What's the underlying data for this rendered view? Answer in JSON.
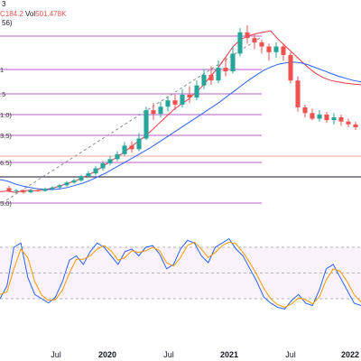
{
  "header": {
    "row1_partial": "3",
    "vol_price": "C184.2",
    "vol_label": "Vol",
    "vol_value": "501.478K",
    "ma_partial": "56)"
  },
  "colors": {
    "up": "#26a69a",
    "down": "#ef5350",
    "fib": "#9c27b0",
    "ma_fast": "#f23645",
    "ma_slow": "#2962ff",
    "stoch_k": "#2962ff",
    "stoch_d": "#ff9800"
  },
  "chart_data": [
    {
      "type": "candlestick",
      "title": "",
      "x_ticks": [
        "Jul",
        "2020",
        "Jul",
        "2021",
        "Jul",
        "2022"
      ],
      "fib_levels": [
        "1",
        ".5",
        "1.0)",
        "3.5)",
        "6.5)",
        "5.0)"
      ],
      "series": [
        {
          "values": [
            95,
            96,
            94,
            96,
            97,
            96,
            98,
            100,
            103,
            107,
            110,
            115,
            120,
            126,
            133,
            140,
            147,
            155,
            163,
            171,
            180,
            190,
            200,
            210,
            218,
            225,
            235,
            245,
            258,
            270,
            285,
            300,
            310,
            315,
            318,
            320,
            322,
            310,
            300,
            290,
            280,
            270,
            262,
            256,
            252,
            250,
            248,
            247,
            246
          ]
        },
        {
          "values": [
            112,
            110,
            106,
            103,
            101,
            99,
            98,
            98,
            99,
            101,
            104,
            107,
            111,
            116,
            121,
            127,
            133,
            139,
            145,
            151,
            157,
            164,
            171,
            178,
            185,
            192,
            199,
            206,
            213,
            220,
            228,
            236,
            244,
            252,
            259,
            266,
            271,
            275,
            277,
            278,
            277,
            274,
            270,
            266,
            262,
            258,
            255,
            252,
            250
          ]
        }
      ],
      "candles": [
        [
          100,
          96,
          103,
          94
        ],
        [
          96,
          97,
          99,
          93
        ],
        [
          97,
          94,
          98,
          92
        ],
        [
          94,
          97,
          99,
          93
        ],
        [
          97,
          96,
          100,
          95
        ],
        [
          96,
          99,
          101,
          95
        ],
        [
          99,
          101,
          103,
          97
        ],
        [
          101,
          104,
          106,
          99
        ],
        [
          104,
          108,
          110,
          102
        ],
        [
          108,
          111,
          113,
          106
        ],
        [
          111,
          117,
          119,
          109
        ],
        [
          117,
          121,
          124,
          115
        ],
        [
          121,
          128,
          131,
          118
        ],
        [
          128,
          135,
          138,
          125
        ],
        [
          135,
          141,
          145,
          132
        ],
        [
          141,
          148,
          152,
          138
        ],
        [
          148,
          160,
          165,
          145
        ],
        [
          160,
          155,
          166,
          150
        ],
        [
          155,
          170,
          178,
          152
        ],
        [
          170,
          210,
          215,
          168
        ],
        [
          210,
          205,
          220,
          196
        ],
        [
          205,
          215,
          222,
          200
        ],
        [
          215,
          224,
          230,
          208
        ],
        [
          224,
          218,
          232,
          210
        ],
        [
          218,
          232,
          240,
          214
        ],
        [
          232,
          228,
          244,
          220
        ],
        [
          228,
          245,
          252,
          224
        ],
        [
          245,
          260,
          268,
          240
        ],
        [
          260,
          252,
          272,
          246
        ],
        [
          252,
          270,
          280,
          248
        ],
        [
          270,
          265,
          285,
          258
        ],
        [
          265,
          290,
          300,
          262
        ],
        [
          290,
          320,
          326,
          286
        ],
        [
          320,
          312,
          330,
          304
        ],
        [
          312,
          306,
          318,
          296
        ],
        [
          306,
          300,
          310,
          290
        ],
        [
          300,
          292,
          304,
          280
        ],
        [
          292,
          300,
          306,
          284
        ],
        [
          300,
          288,
          304,
          280
        ],
        [
          288,
          252,
          292,
          248
        ],
        [
          252,
          214,
          258,
          208
        ],
        [
          214,
          206,
          218,
          200
        ],
        [
          206,
          198,
          212,
          196
        ],
        [
          198,
          204,
          210,
          194
        ],
        [
          204,
          196,
          208,
          192
        ],
        [
          196,
          200,
          206,
          190
        ],
        [
          200,
          194,
          204,
          188
        ],
        [
          194,
          190,
          198,
          186
        ],
        [
          190,
          186,
          194,
          182
        ]
      ],
      "ylim": [
        70,
        330
      ]
    },
    {
      "type": "line",
      "title": "",
      "series": [
        {
          "values": [
            20,
            35,
            80,
            85,
            45,
            25,
            20,
            15,
            22,
            40,
            65,
            70,
            60,
            75,
            85,
            80,
            70,
            60,
            75,
            78,
            70,
            80,
            82,
            72,
            55,
            60,
            78,
            88,
            85,
            70,
            62,
            80,
            85,
            90,
            78,
            70,
            55,
            40,
            22,
            15,
            10,
            8,
            18,
            25,
            15,
            12,
            30,
            55,
            60,
            45,
            30,
            15,
            12
          ]
        },
        {
          "values": [
            25,
            28,
            55,
            78,
            68,
            40,
            24,
            18,
            19,
            30,
            50,
            66,
            66,
            70,
            78,
            82,
            76,
            65,
            68,
            76,
            74,
            76,
            80,
            76,
            62,
            58,
            68,
            82,
            86,
            78,
            68,
            74,
            82,
            86,
            84,
            74,
            62,
            48,
            32,
            20,
            13,
            10,
            14,
            21,
            19,
            14,
            22,
            42,
            55,
            52,
            40,
            25,
            16
          ]
        }
      ],
      "ylim": [
        0,
        100
      ]
    }
  ]
}
